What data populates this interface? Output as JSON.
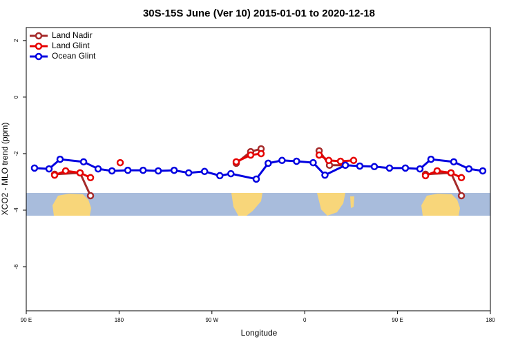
{
  "chart_data": {
    "type": "line",
    "title": "30S-15S June (Ver 10)   2015-01-01 to 2020-12-18",
    "x_label": "Longitude",
    "y_label": "XCO2 - MLO trend (ppm)",
    "xlim": [
      90,
      540
    ],
    "xticks": [
      {
        "value": 90,
        "label": "90 E"
      },
      {
        "value": 180,
        "label": "180"
      },
      {
        "value": 270,
        "label": "90 W"
      },
      {
        "value": 360,
        "label": "0"
      },
      {
        "value": 450,
        "label": "90 E"
      },
      {
        "value": 540,
        "label": "180"
      }
    ],
    "ylim": [
      -7.56,
      2.46
    ],
    "yticks": [
      2,
      0,
      -2,
      -4,
      -6
    ],
    "legend": "top-left",
    "series": [
      {
        "name": "Land Nadir",
        "color": "#a52a2a",
        "x": [
          117.5,
          142.2,
          152.3,
          220,
          293.6,
          307.6,
          317.7,
          345,
          374.0,
          384.0,
          399.4,
          440,
          477.1,
          501.8,
          511.9
        ],
        "values": [
          -2.73,
          -2.68,
          -3.49,
          null,
          -2.34,
          -1.93,
          -1.83,
          null,
          -1.9,
          -2.41,
          -2.41,
          null,
          -2.73,
          -2.68,
          -3.49
        ]
      },
      {
        "name": "Land Glint",
        "color": "#e60000",
        "x": [
          117.5,
          128.2,
          142.2,
          152.3,
          165,
          181.1,
          240,
          293.6,
          307.6,
          317.7,
          345,
          374.0,
          383.3,
          394.7,
          407.4,
          440,
          477.1,
          488.4,
          501.8,
          511.9
        ],
        "values": [
          -2.76,
          -2.61,
          -2.68,
          -2.85,
          null,
          -2.32,
          null,
          -2.29,
          -2.05,
          -2.0,
          null,
          -2.05,
          -2.24,
          -2.27,
          -2.24,
          null,
          -2.78,
          -2.61,
          -2.68,
          -2.85
        ]
      },
      {
        "name": "Ocean Glint",
        "color": "#0000e0",
        "x": [
          98.0,
          112.1,
          122.8,
          145.6,
          159.7,
          173.1,
          188.5,
          203.3,
          218.0,
          233.4,
          247.5,
          262.9,
          277.7,
          288.4,
          313.0,
          324.6,
          338.0,
          352.1,
          368.2,
          379.6,
          399.4,
          413.4,
          427.5,
          442.2,
          457.6,
          471.7,
          482.4,
          504.5,
          519.2,
          532.6
        ],
        "values": [
          -2.51,
          -2.54,
          -2.2,
          -2.29,
          -2.54,
          -2.61,
          -2.59,
          -2.59,
          -2.61,
          -2.59,
          -2.68,
          -2.63,
          -2.78,
          -2.71,
          -2.9,
          -2.34,
          -2.24,
          -2.27,
          -2.32,
          -2.76,
          -2.41,
          -2.44,
          -2.46,
          -2.51,
          -2.51,
          -2.54,
          -2.2,
          -2.29,
          -2.54,
          -2.61
        ]
      }
    ]
  }
}
